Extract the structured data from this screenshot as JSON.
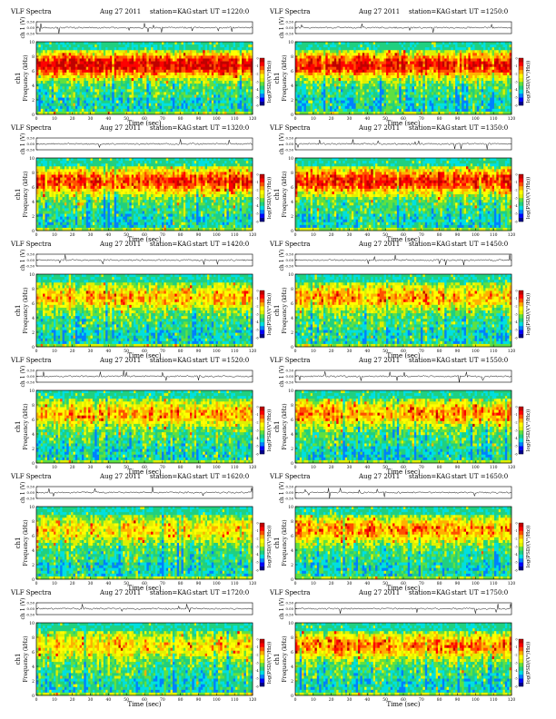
{
  "page": {
    "title_prefix": "VLF Spectra",
    "date": "Aug 27 2011",
    "station": "station=KAG",
    "time_label": "start  UT",
    "waveform_ylabel": "ch 1 (V)",
    "spectro_ylabel_channel": "ch1",
    "spectro_ylabel": "Frequency  (kHz)",
    "xlabel": "Time  (sec)",
    "colorbar_label": "log(PSD/(V²/Hz))"
  },
  "chart_data": [
    {
      "type": "heatmap",
      "panel": 1,
      "start_ut": "=1220:0",
      "activity": 0.86
    },
    {
      "type": "heatmap",
      "panel": 2,
      "start_ut": "=1250:0",
      "activity": 0.82
    },
    {
      "type": "heatmap",
      "panel": 3,
      "start_ut": "=1320:0",
      "activity": 0.74
    },
    {
      "type": "heatmap",
      "panel": 4,
      "start_ut": "=1350:0",
      "activity": 0.76
    },
    {
      "type": "heatmap",
      "panel": 5,
      "start_ut": "=1420:0",
      "activity": 0.5
    },
    {
      "type": "heatmap",
      "panel": 6,
      "start_ut": "=1450:0",
      "activity": 0.52
    },
    {
      "type": "heatmap",
      "panel": 7,
      "start_ut": "=1520:0",
      "activity": 0.52
    },
    {
      "type": "heatmap",
      "panel": 8,
      "start_ut": "=1550:0",
      "activity": 0.55
    },
    {
      "type": "heatmap",
      "panel": 9,
      "start_ut": "=1620:0",
      "activity": 0.4
    },
    {
      "type": "heatmap",
      "panel": 10,
      "start_ut": "=1650:0",
      "activity": 0.58
    },
    {
      "type": "heatmap",
      "panel": 11,
      "start_ut": "=1720:0",
      "activity": 0.42
    },
    {
      "type": "heatmap",
      "panel": 12,
      "start_ut": "=1750:0",
      "activity": 0.6
    }
  ],
  "axes": {
    "x_ticks": [
      "0",
      "10",
      "20",
      "30",
      "40",
      "50",
      "60",
      "70",
      "80",
      "90",
      "100",
      "110",
      "120"
    ],
    "x_range": [
      0,
      120
    ],
    "freq_ticks": [
      "0",
      "2",
      "4",
      "6",
      "8",
      "10"
    ],
    "freq_range": [
      0,
      10
    ],
    "wave_ticks": [
      "0.50",
      "0.00",
      "-0.50"
    ],
    "wave_range": [
      -0.5,
      0.5
    ],
    "colorbar_ticks": [
      "0",
      "-1",
      "-2",
      "-3",
      "-4",
      "-5",
      "-6"
    ],
    "colorbar_range": [
      -6,
      0
    ]
  },
  "colors": {
    "psd_scale": [
      "#00008b",
      "#0000ff",
      "#0080ff",
      "#00e0e0",
      "#20d080",
      "#60e040",
      "#e0f000",
      "#ffff00",
      "#ffb000",
      "#ff5000",
      "#ff0000",
      "#c00000"
    ],
    "waveform_line": "#000000"
  }
}
